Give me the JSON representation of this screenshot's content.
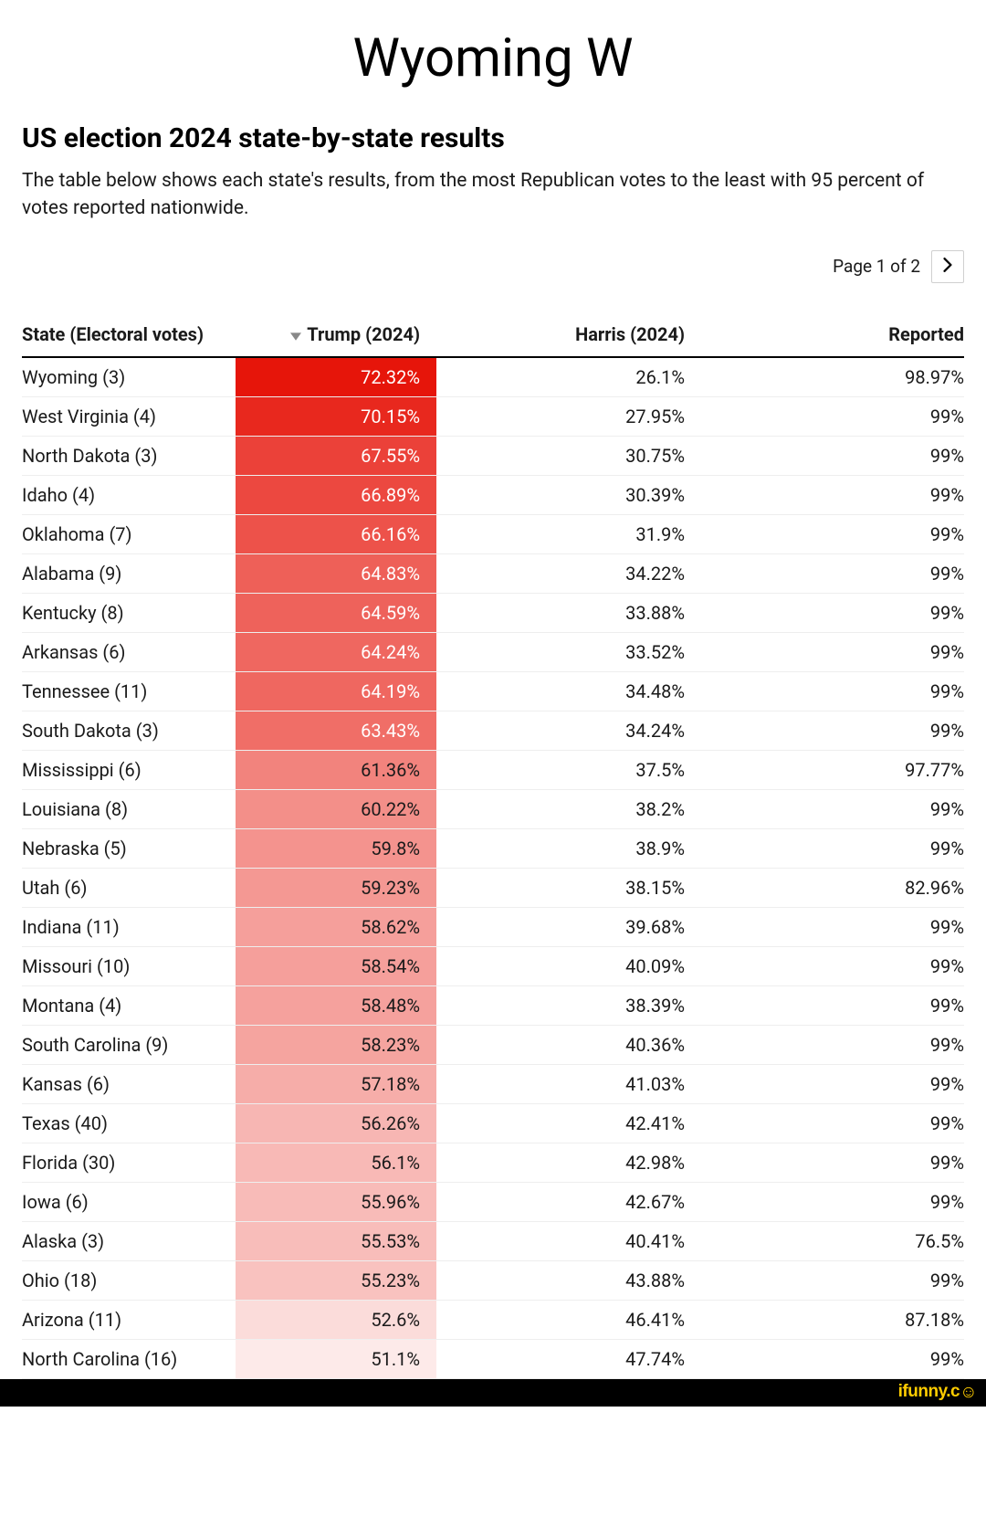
{
  "header": {
    "main_title": "Wyoming W",
    "sub_title": "US election 2024 state-by-state results",
    "description": "The table below shows each state's results, from the most Republican votes to the least with 95 percent of votes reported nationwide."
  },
  "pager": {
    "label": "Page 1 of 2"
  },
  "table": {
    "columns": {
      "state": "State (Electoral votes)",
      "trump": "Trump (2024)",
      "harris": "Harris (2024)",
      "reported": "Reported"
    },
    "heat_color_base": "#e6150a",
    "heat_text_light": "#ffffff",
    "heat_text_dark": "#1a1a1a",
    "rows": [
      {
        "state": "Wyoming (3)",
        "trump": "72.32%",
        "harris": "26.1%",
        "reported": "98.97%",
        "heat": 1.0,
        "light_text": true
      },
      {
        "state": "West Virginia (4)",
        "trump": "70.15%",
        "harris": "27.95%",
        "reported": "99%",
        "heat": 0.92,
        "light_text": true
      },
      {
        "state": "North Dakota (3)",
        "trump": "67.55%",
        "harris": "30.75%",
        "reported": "99%",
        "heat": 0.81,
        "light_text": true
      },
      {
        "state": "Idaho (4)",
        "trump": "66.89%",
        "harris": "30.39%",
        "reported": "99%",
        "heat": 0.78,
        "light_text": true
      },
      {
        "state": "Oklahoma (7)",
        "trump": "66.16%",
        "harris": "31.9%",
        "reported": "99%",
        "heat": 0.74,
        "light_text": true
      },
      {
        "state": "Alabama (9)",
        "trump": "64.83%",
        "harris": "34.22%",
        "reported": "99%",
        "heat": 0.68,
        "light_text": true
      },
      {
        "state": "Kentucky (8)",
        "trump": "64.59%",
        "harris": "33.88%",
        "reported": "99%",
        "heat": 0.67,
        "light_text": true
      },
      {
        "state": "Arkansas (6)",
        "trump": "64.24%",
        "harris": "33.52%",
        "reported": "99%",
        "heat": 0.65,
        "light_text": true
      },
      {
        "state": "Tennessee (11)",
        "trump": "64.19%",
        "harris": "34.48%",
        "reported": "99%",
        "heat": 0.65,
        "light_text": true
      },
      {
        "state": "South Dakota (3)",
        "trump": "63.43%",
        "harris": "34.24%",
        "reported": "99%",
        "heat": 0.62,
        "light_text": true
      },
      {
        "state": "Mississippi (6)",
        "trump": "61.36%",
        "harris": "37.5%",
        "reported": "97.77%",
        "heat": 0.53,
        "light_text": false
      },
      {
        "state": "Louisiana (8)",
        "trump": "60.22%",
        "harris": "38.2%",
        "reported": "99%",
        "heat": 0.48,
        "light_text": false
      },
      {
        "state": "Nebraska (5)",
        "trump": "59.8%",
        "harris": "38.9%",
        "reported": "99%",
        "heat": 0.46,
        "light_text": false
      },
      {
        "state": "Utah (6)",
        "trump": "59.23%",
        "harris": "38.15%",
        "reported": "82.96%",
        "heat": 0.44,
        "light_text": false
      },
      {
        "state": "Indiana (11)",
        "trump": "58.62%",
        "harris": "39.68%",
        "reported": "99%",
        "heat": 0.41,
        "light_text": false
      },
      {
        "state": "Missouri (10)",
        "trump": "58.54%",
        "harris": "40.09%",
        "reported": "99%",
        "heat": 0.41,
        "light_text": false
      },
      {
        "state": "Montana (4)",
        "trump": "58.48%",
        "harris": "38.39%",
        "reported": "99%",
        "heat": 0.4,
        "light_text": false
      },
      {
        "state": "South Carolina (9)",
        "trump": "58.23%",
        "harris": "40.36%",
        "reported": "99%",
        "heat": 0.39,
        "light_text": false
      },
      {
        "state": "Kansas (6)",
        "trump": "57.18%",
        "harris": "41.03%",
        "reported": "99%",
        "heat": 0.35,
        "light_text": false
      },
      {
        "state": "Texas (40)",
        "trump": "56.26%",
        "harris": "42.41%",
        "reported": "99%",
        "heat": 0.31,
        "light_text": false
      },
      {
        "state": "Florida (30)",
        "trump": "56.1%",
        "harris": "42.98%",
        "reported": "99%",
        "heat": 0.3,
        "light_text": false
      },
      {
        "state": "Iowa (6)",
        "trump": "55.96%",
        "harris": "42.67%",
        "reported": "99%",
        "heat": 0.29,
        "light_text": false
      },
      {
        "state": "Alaska (3)",
        "trump": "55.53%",
        "harris": "40.41%",
        "reported": "76.5%",
        "heat": 0.28,
        "light_text": false
      },
      {
        "state": "Ohio (18)",
        "trump": "55.23%",
        "harris": "43.88%",
        "reported": "99%",
        "heat": 0.26,
        "light_text": false
      },
      {
        "state": "Arizona (11)",
        "trump": "52.6%",
        "harris": "46.41%",
        "reported": "87.18%",
        "heat": 0.15,
        "light_text": false
      },
      {
        "state": "North Carolina (16)",
        "trump": "51.1%",
        "harris": "47.74%",
        "reported": "99%",
        "heat": 0.09,
        "light_text": false
      }
    ]
  },
  "watermark": "ifunny.c"
}
